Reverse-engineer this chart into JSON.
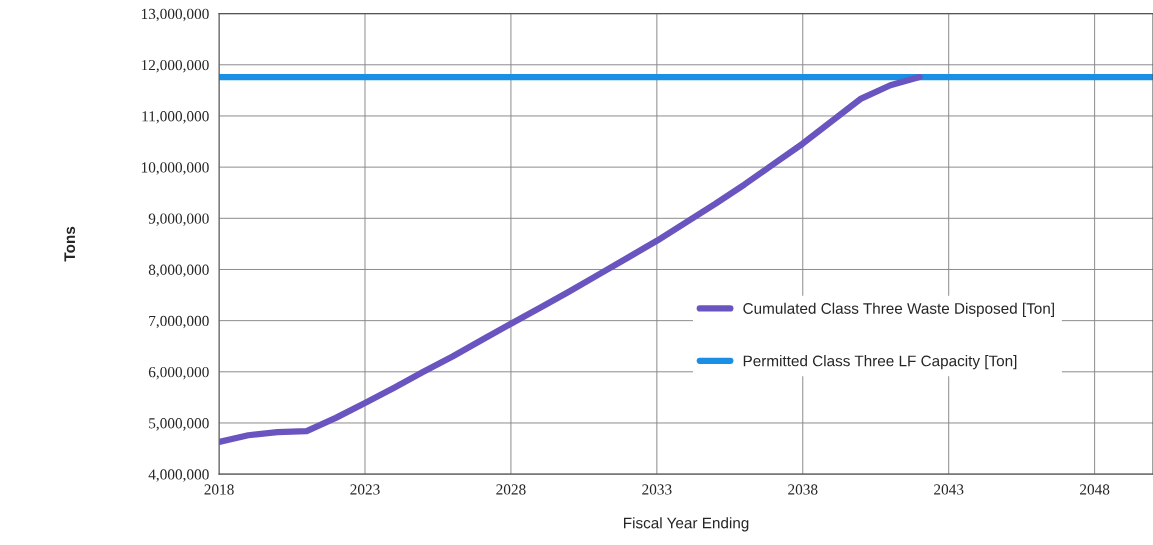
{
  "chart_data": {
    "type": "line",
    "xlabel": "Fiscal Year Ending",
    "ylabel": "Tons",
    "xlim": [
      2018,
      2050
    ],
    "xticks": [
      2018,
      2023,
      2028,
      2033,
      2038,
      2043,
      2048
    ],
    "ylim": [
      4000000,
      13000000
    ],
    "yticks": [
      {
        "value": 4000000,
        "label": "4,000,000"
      },
      {
        "value": 5000000,
        "label": "5,000,000"
      },
      {
        "value": 6000000,
        "label": "6,000,000"
      },
      {
        "value": 7000000,
        "label": "7,000,000"
      },
      {
        "value": 8000000,
        "label": "8,000,000"
      },
      {
        "value": 9000000,
        "label": "9,000,000"
      },
      {
        "value": 10000000,
        "label": "10,000,000"
      },
      {
        "value": 11000000,
        "label": "11,000,000"
      },
      {
        "value": 12000000,
        "label": "12,000,000"
      },
      {
        "value": 13000000,
        "label": "13,000,000"
      }
    ],
    "grid": true,
    "legend": "right",
    "marker": "none",
    "line_style": "solid",
    "series": [
      {
        "name": "Cumulated Class Three Waste Disposed [Ton]",
        "color": "#6a55c0",
        "x": [
          2018,
          2019,
          2020,
          2021,
          2022,
          2023,
          2024,
          2025,
          2026,
          2027,
          2028,
          2029,
          2030,
          2031,
          2032,
          2033,
          2034,
          2035,
          2036,
          2037,
          2038,
          2039,
          2040,
          2041,
          2042
        ],
        "values": [
          4630000,
          4760000,
          4820000,
          4840000,
          5100000,
          5390000,
          5690000,
          6000000,
          6300000,
          6620000,
          6940000,
          7250000,
          7570000,
          7900000,
          8230000,
          8560000,
          8920000,
          9280000,
          9660000,
          10060000,
          10460000,
          10900000,
          11340000,
          11600000,
          11760000
        ]
      },
      {
        "name": "Permitted Class Three LF Capacity [Ton]",
        "color": "#1a8fe3",
        "x": [
          2018,
          2050
        ],
        "values": [
          11760000,
          11760000
        ]
      }
    ]
  }
}
